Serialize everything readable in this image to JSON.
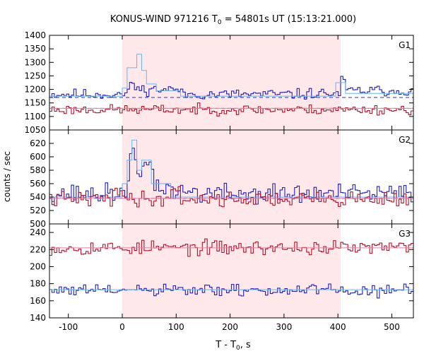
{
  "chart_data": {
    "type": "line",
    "title": "KONUS-WIND 971216 T",
    "title_sub": "0",
    "title_rest": " = 54801s UT (15:13:21.000)",
    "xlabel_main": "T - T",
    "xlabel_sub": "0",
    "xlabel_rest": ", s",
    "ylabel": "counts / sec",
    "xlim": [
      -135,
      540
    ],
    "xticks": [
      -100,
      0,
      100,
      200,
      300,
      400,
      500
    ],
    "xtick_labels": [
      "-100",
      "0",
      "100",
      "200",
      "300",
      "400",
      "500"
    ],
    "highlight_interval": [
      0,
      405
    ],
    "highlight_color": "#ffe8ea",
    "bin_width": 4.5,
    "panels": [
      {
        "name": "G1",
        "ylim": [
          1050,
          1400
        ],
        "yticks": [
          1050,
          1100,
          1150,
          1200,
          1250,
          1300,
          1350,
          1400
        ],
        "ytick_labels": [
          "1050",
          "1100",
          "1150",
          "1200",
          "1250",
          "1300",
          "1350",
          "1400"
        ],
        "background_levels": [
          1170,
          1130
        ],
        "series": [
          {
            "color": "#1f1fbf",
            "base": 1182,
            "noise": 16,
            "seed": 11,
            "bumps": [
              [
                8,
                0,
                1170
              ],
              [
                14,
                40,
                1230
              ],
              [
                24,
                60,
                1200
              ],
              [
                30,
                110,
                1200
              ],
              [
                340,
                405,
                1185
              ],
              [
                405,
                415,
                1230
              ],
              [
                415,
                540,
                1195
              ]
            ]
          },
          {
            "color": "#6cb4f0",
            "smooth": true,
            "base": 1175,
            "bumps": [
              [
                0,
                10,
                1205
              ],
              [
                10,
                24,
                1280
              ],
              [
                24,
                32,
                1330
              ],
              [
                32,
                44,
                1270
              ],
              [
                44,
                60,
                1220
              ],
              [
                60,
                110,
                1195
              ],
              [
                400,
                410,
                1225
              ],
              [
                410,
                540,
                1185
              ]
            ]
          },
          {
            "color": "#b5112b",
            "base": 1125,
            "noise": 15,
            "seed": 23,
            "bumps": []
          },
          {
            "color": "#e080a0",
            "smooth": true,
            "base": 1130,
            "bumps": []
          }
        ]
      },
      {
        "name": "G2",
        "ylim": [
          500,
          640
        ],
        "yticks": [
          500,
          520,
          540,
          560,
          580,
          600,
          620
        ],
        "ytick_labels": [
          "500",
          "520",
          "540",
          "560",
          "580",
          "600",
          "620"
        ],
        "background_levels": [
          538
        ],
        "series": [
          {
            "color": "#1f1fbf",
            "base": 545,
            "noise": 12,
            "seed": 37,
            "bumps": [
              [
                0,
                14,
                555
              ],
              [
                14,
                28,
                600
              ],
              [
                28,
                42,
                570
              ],
              [
                42,
                58,
                590
              ],
              [
                58,
                90,
                555
              ],
              [
                90,
                140,
                548
              ]
            ]
          },
          {
            "color": "#6cb4f0",
            "smooth": true,
            "base": 540,
            "bumps": [
              [
                0,
                10,
                560
              ],
              [
                10,
                20,
                595
              ],
              [
                20,
                26,
                625
              ],
              [
                26,
                40,
                580
              ],
              [
                40,
                52,
                595
              ],
              [
                52,
                90,
                560
              ]
            ]
          },
          {
            "color": "#b5112b",
            "base": 537,
            "noise": 9,
            "seed": 41,
            "bumps": [
              [
                -20,
                0,
                553
              ],
              [
                90,
                110,
                552
              ]
            ]
          },
          {
            "color": "#e080a0",
            "smooth": true,
            "base": 538,
            "bumps": []
          }
        ]
      },
      {
        "name": "G3",
        "ylim": [
          140,
          250
        ],
        "yticks": [
          140,
          160,
          180,
          200,
          220,
          240
        ],
        "ytick_labels": [
          "140",
          "160",
          "180",
          "200",
          "220",
          "240"
        ],
        "background_levels": [],
        "series": [
          {
            "color": "#b5112b",
            "base": 222,
            "noise": 7,
            "seed": 53,
            "bumps": []
          },
          {
            "color": "#e080a0",
            "smooth": true,
            "base": 222,
            "bumps": []
          },
          {
            "color": "#1f1fbf",
            "base": 172,
            "noise": 6,
            "seed": 61,
            "bumps": []
          },
          {
            "color": "#6cb4f0",
            "smooth": true,
            "base": 173,
            "bumps": []
          }
        ]
      }
    ]
  }
}
